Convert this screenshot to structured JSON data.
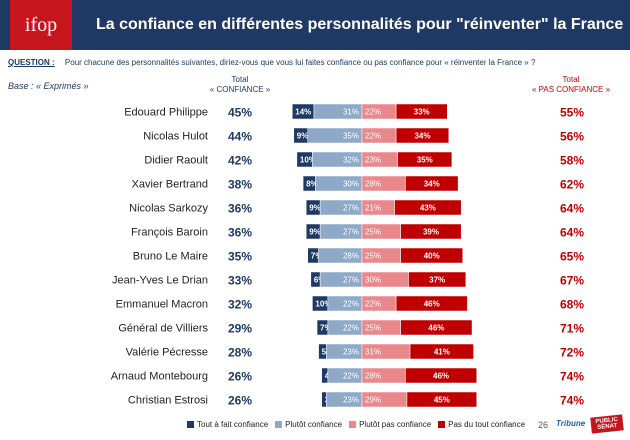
{
  "header": {
    "logo_text": "ifop",
    "title": "La confiance en différentes personnalités pour \"réinventer\" la France"
  },
  "question": {
    "label": "QUESTION :",
    "text": "Pour chacune des personnalités suivantes, diriez-vous que vous lui faites confiance ou pas confiance pour « réinventer la France » ?"
  },
  "base": "Base : « Exprimés »",
  "columns": {
    "confiance_line1": "Total",
    "confiance_line2": "« CONFIANCE »",
    "pas_line1": "Total",
    "pas_line2": "« PAS CONFIANCE »"
  },
  "legend": [
    {
      "label": "Tout à fait confiance",
      "color": "#1f3864"
    },
    {
      "label": "Plutôt confiance",
      "color": "#8ea9c8"
    },
    {
      "label": "Plutôt pas confiance",
      "color": "#e8888c"
    },
    {
      "label": "Pas du tout confiance",
      "color": "#c00000"
    }
  ],
  "footer": {
    "page_number": "26",
    "brand1": "Tribune",
    "brand2": "PUBLIC SÉNAT"
  },
  "chart_data": {
    "type": "bar",
    "stacked": true,
    "diverging": true,
    "categories": [
      "Edouard Philippe",
      "Nicolas Hulot",
      "Didier Raoult",
      "Xavier Bertrand",
      "Nicolas Sarkozy",
      "François Baroin",
      "Bruno Le Maire",
      "Jean-Yves Le Drian",
      "Emmanuel Macron",
      "Général de Villiers",
      "Valérie Pécresse",
      "Arnaud Montebourg",
      "Christian Estrosi"
    ],
    "total_confiance": [
      "45%",
      "44%",
      "42%",
      "38%",
      "36%",
      "36%",
      "35%",
      "33%",
      "32%",
      "29%",
      "28%",
      "26%",
      "26%"
    ],
    "total_pas_confiance": [
      "55%",
      "56%",
      "58%",
      "62%",
      "64%",
      "64%",
      "65%",
      "67%",
      "68%",
      "71%",
      "72%",
      "74%",
      "74%"
    ],
    "series": [
      {
        "name": "Tout à fait confiance",
        "color": "#1f3864",
        "values": [
          14,
          9,
          10,
          8,
          9,
          9,
          7,
          6,
          10,
          7,
          5,
          4,
          3
        ]
      },
      {
        "name": "Plutôt confiance",
        "color": "#8ea9c8",
        "values": [
          31,
          35,
          32,
          30,
          27,
          27,
          28,
          27,
          22,
          22,
          23,
          22,
          23
        ]
      },
      {
        "name": "Plutôt pas confiance",
        "color": "#e8888c",
        "values": [
          22,
          22,
          23,
          28,
          21,
          25,
          25,
          30,
          22,
          25,
          31,
          28,
          29
        ]
      },
      {
        "name": "Pas du tout confiance",
        "color": "#c00000",
        "values": [
          33,
          34,
          35,
          34,
          43,
          39,
          40,
          37,
          46,
          46,
          41,
          46,
          45
        ]
      }
    ]
  }
}
